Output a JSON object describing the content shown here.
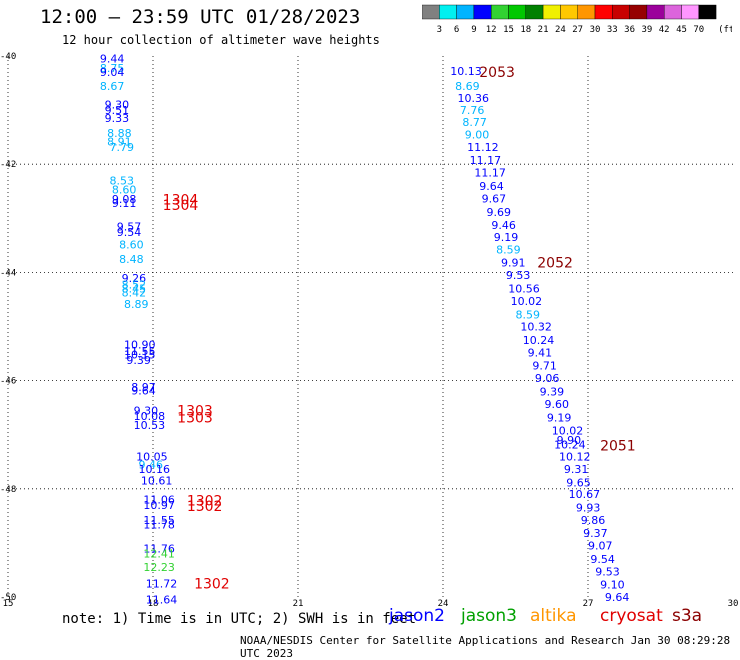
{
  "header": {
    "title": "12:00 – 23:59 UTC 01/28/2023",
    "subtitle": "12 hour collection of altimeter wave heights"
  },
  "color_scale": {
    "levels": [
      "3",
      "6",
      "9",
      "12",
      "15",
      "18",
      "21",
      "24",
      "27",
      "30",
      "33",
      "36",
      "39",
      "42",
      "45",
      "70"
    ],
    "unit": "(ft)",
    "colors": [
      "#808080",
      "#00f0f0",
      "#00b4ff",
      "#0000ff",
      "#32d232",
      "#00c800",
      "#008000",
      "#f0f000",
      "#ffc800",
      "#ff9600",
      "#ff0000",
      "#c80000",
      "#960000",
      "#9b009b",
      "#dc64dc",
      "#ff96ff",
      "#000000"
    ]
  },
  "footer": {
    "note": "note: 1) Time is in UTC; 2) SWH is in feet",
    "credit": "NOAA/NESDIS Center for Satellite Applications and Research  Jan 30 08:29:28 UTC 2023",
    "satellites": [
      {
        "name": "jason2",
        "color": "#0000ff"
      },
      {
        "name": "jason3",
        "color": "#00a000"
      },
      {
        "name": "altika",
        "color": "#ff9600"
      },
      {
        "name": "cryosat",
        "color": "#e00000"
      },
      {
        "name": "s3a",
        "color": "#8b0000"
      }
    ]
  },
  "chart_data": {
    "type": "scatter",
    "title": "12:00 – 23:59 UTC 01/28/2023",
    "subtitle": "12 hour collection of altimeter wave heights",
    "xlim": [
      15,
      30
    ],
    "ylim": [
      -50,
      -40
    ],
    "x_ticks": [
      "15",
      "18",
      "21",
      "24",
      "27",
      "30"
    ],
    "y_ticks": [
      "-40",
      "-42",
      "-44",
      "-46",
      "-48",
      "-50"
    ],
    "grid": true,
    "points": [
      {
        "x": 16.9,
        "y": -40.05,
        "v": "9.44",
        "c": "#0000ff"
      },
      {
        "x": 16.9,
        "y": -40.22,
        "v": "8.75",
        "c": "#00b4ff"
      },
      {
        "x": 16.9,
        "y": -40.3,
        "v": "9.04",
        "c": "#0000ff"
      },
      {
        "x": 16.9,
        "y": -40.55,
        "v": "8.67",
        "c": "#00b4ff"
      },
      {
        "x": 17.0,
        "y": -40.9,
        "v": "9.30",
        "c": "#0000ff"
      },
      {
        "x": 17.0,
        "y": -41.0,
        "v": "9.51",
        "c": "#0000ff"
      },
      {
        "x": 17.0,
        "y": -41.15,
        "v": "9.33",
        "c": "#0000ff"
      },
      {
        "x": 17.05,
        "y": -41.42,
        "v": "8.88",
        "c": "#00b4ff"
      },
      {
        "x": 17.05,
        "y": -41.58,
        "v": "8.91",
        "c": "#00b4ff"
      },
      {
        "x": 17.1,
        "y": -41.68,
        "v": "7.79",
        "c": "#00b4ff"
      },
      {
        "x": 17.1,
        "y": -42.3,
        "v": "8.53",
        "c": "#00b4ff"
      },
      {
        "x": 17.15,
        "y": -42.47,
        "v": "8.60",
        "c": "#00b4ff"
      },
      {
        "x": 17.15,
        "y": -42.64,
        "v": "9.08",
        "c": "#0000ff"
      },
      {
        "x": 17.15,
        "y": -42.72,
        "v": "9.11",
        "c": "#0000ff"
      },
      {
        "x": 17.25,
        "y": -43.15,
        "v": "9.57",
        "c": "#0000ff"
      },
      {
        "x": 17.25,
        "y": -43.25,
        "v": "9.54",
        "c": "#0000ff"
      },
      {
        "x": 17.3,
        "y": -43.48,
        "v": "8.60",
        "c": "#00b4ff"
      },
      {
        "x": 17.3,
        "y": -43.75,
        "v": "8.48",
        "c": "#00b4ff"
      },
      {
        "x": 17.35,
        "y": -44.1,
        "v": "9.26",
        "c": "#0000ff"
      },
      {
        "x": 17.35,
        "y": -44.22,
        "v": "8.52",
        "c": "#00b4ff"
      },
      {
        "x": 17.35,
        "y": -44.3,
        "v": "8.45",
        "c": "#00b4ff"
      },
      {
        "x": 17.35,
        "y": -44.37,
        "v": "8.42",
        "c": "#00b4ff"
      },
      {
        "x": 17.4,
        "y": -44.58,
        "v": "8.89",
        "c": "#00b4ff"
      },
      {
        "x": 17.4,
        "y": -45.33,
        "v": "10.90",
        "c": "#0000ff"
      },
      {
        "x": 17.4,
        "y": -45.45,
        "v": "11.55",
        "c": "#0000ff"
      },
      {
        "x": 17.4,
        "y": -45.52,
        "v": "10.15",
        "c": "#0000ff"
      },
      {
        "x": 17.45,
        "y": -45.62,
        "v": "9.39",
        "c": "#0000ff"
      },
      {
        "x": 17.55,
        "y": -46.12,
        "v": "8.97",
        "c": "#0000ff"
      },
      {
        "x": 17.55,
        "y": -46.18,
        "v": "9.64",
        "c": "#0000ff"
      },
      {
        "x": 17.6,
        "y": -46.55,
        "v": "9.30",
        "c": "#0000ff"
      },
      {
        "x": 17.6,
        "y": -46.65,
        "v": "10.08",
        "c": "#0000ff"
      },
      {
        "x": 17.6,
        "y": -46.82,
        "v": "10.53",
        "c": "#0000ff"
      },
      {
        "x": 17.65,
        "y": -47.4,
        "v": "10.05",
        "c": "#0000ff"
      },
      {
        "x": 17.7,
        "y": -47.55,
        "v": "9.46",
        "c": "#00b4ff"
      },
      {
        "x": 17.7,
        "y": -47.63,
        "v": "10.16",
        "c": "#0000ff"
      },
      {
        "x": 17.75,
        "y": -47.85,
        "v": "10.61",
        "c": "#0000ff"
      },
      {
        "x": 17.8,
        "y": -48.2,
        "v": "11.06",
        "c": "#0000ff"
      },
      {
        "x": 17.8,
        "y": -48.3,
        "v": "10.97",
        "c": "#0000ff"
      },
      {
        "x": 17.8,
        "y": -48.58,
        "v": "11.55",
        "c": "#0000ff"
      },
      {
        "x": 17.8,
        "y": -48.66,
        "v": "11.78",
        "c": "#0000ff"
      },
      {
        "x": 17.8,
        "y": -49.1,
        "v": "11.76",
        "c": "#0000ff"
      },
      {
        "x": 17.8,
        "y": -49.2,
        "v": "12.41",
        "c": "#32d232"
      },
      {
        "x": 17.8,
        "y": -49.45,
        "v": "12.23",
        "c": "#32d232"
      },
      {
        "x": 17.85,
        "y": -49.75,
        "v": "11.72",
        "c": "#0000ff"
      },
      {
        "x": 17.85,
        "y": -50.05,
        "v": "11.64",
        "c": "#0000ff"
      },
      {
        "x": 24.15,
        "y": -40.28,
        "v": "10.13",
        "c": "#0000ff"
      },
      {
        "x": 24.25,
        "y": -40.55,
        "v": "8.69",
        "c": "#00b4ff"
      },
      {
        "x": 24.3,
        "y": -40.78,
        "v": "10.36",
        "c": "#0000ff"
      },
      {
        "x": 24.35,
        "y": -41.0,
        "v": "7.76",
        "c": "#00b4ff"
      },
      {
        "x": 24.4,
        "y": -41.22,
        "v": "8.77",
        "c": "#00b4ff"
      },
      {
        "x": 24.45,
        "y": -41.45,
        "v": "9.00",
        "c": "#00b4ff"
      },
      {
        "x": 24.5,
        "y": -41.68,
        "v": "11.12",
        "c": "#0000ff"
      },
      {
        "x": 24.55,
        "y": -41.92,
        "v": "11.17",
        "c": "#0000ff"
      },
      {
        "x": 24.65,
        "y": -42.15,
        "v": "11.17",
        "c": "#0000ff"
      },
      {
        "x": 24.75,
        "y": -42.4,
        "v": "9.64",
        "c": "#0000ff"
      },
      {
        "x": 24.8,
        "y": -42.63,
        "v": "9.67",
        "c": "#0000ff"
      },
      {
        "x": 24.9,
        "y": -42.88,
        "v": "9.69",
        "c": "#0000ff"
      },
      {
        "x": 25.0,
        "y": -43.12,
        "v": "9.46",
        "c": "#0000ff"
      },
      {
        "x": 25.05,
        "y": -43.35,
        "v": "9.19",
        "c": "#0000ff"
      },
      {
        "x": 25.1,
        "y": -43.58,
        "v": "8.59",
        "c": "#00b4ff"
      },
      {
        "x": 25.2,
        "y": -43.82,
        "v": "9.91",
        "c": "#0000ff"
      },
      {
        "x": 25.3,
        "y": -44.05,
        "v": "9.53",
        "c": "#0000ff"
      },
      {
        "x": 25.35,
        "y": -44.3,
        "v": "10.56",
        "c": "#0000ff"
      },
      {
        "x": 25.4,
        "y": -44.53,
        "v": "10.02",
        "c": "#0000ff"
      },
      {
        "x": 25.5,
        "y": -44.78,
        "v": "8.59",
        "c": "#00b4ff"
      },
      {
        "x": 25.6,
        "y": -45.0,
        "v": "10.32",
        "c": "#0000ff"
      },
      {
        "x": 25.65,
        "y": -45.25,
        "v": "10.24",
        "c": "#0000ff"
      },
      {
        "x": 25.75,
        "y": -45.48,
        "v": "9.41",
        "c": "#0000ff"
      },
      {
        "x": 25.85,
        "y": -45.72,
        "v": "9.71",
        "c": "#0000ff"
      },
      {
        "x": 25.9,
        "y": -45.95,
        "v": "9.06",
        "c": "#0000ff"
      },
      {
        "x": 26.0,
        "y": -46.2,
        "v": "9.39",
        "c": "#0000ff"
      },
      {
        "x": 26.1,
        "y": -46.43,
        "v": "9.60",
        "c": "#0000ff"
      },
      {
        "x": 26.15,
        "y": -46.68,
        "v": "9.19",
        "c": "#0000ff"
      },
      {
        "x": 26.25,
        "y": -46.92,
        "v": "10.02",
        "c": "#0000ff"
      },
      {
        "x": 26.35,
        "y": -47.1,
        "v": "9.90",
        "c": "#0000ff"
      },
      {
        "x": 26.3,
        "y": -47.18,
        "v": "10.24",
        "c": "#0000ff"
      },
      {
        "x": 26.4,
        "y": -47.4,
        "v": "10.12",
        "c": "#0000ff"
      },
      {
        "x": 26.5,
        "y": -47.63,
        "v": "9.31",
        "c": "#0000ff"
      },
      {
        "x": 26.55,
        "y": -47.88,
        "v": "9.65",
        "c": "#0000ff"
      },
      {
        "x": 26.6,
        "y": -48.1,
        "v": "10.67",
        "c": "#0000ff"
      },
      {
        "x": 26.75,
        "y": -48.35,
        "v": "9.93",
        "c": "#0000ff"
      },
      {
        "x": 26.85,
        "y": -48.58,
        "v": "9.86",
        "c": "#0000ff"
      },
      {
        "x": 26.9,
        "y": -48.82,
        "v": "9.37",
        "c": "#0000ff"
      },
      {
        "x": 27.0,
        "y": -49.05,
        "v": "9.07",
        "c": "#0000ff"
      },
      {
        "x": 27.05,
        "y": -49.3,
        "v": "9.54",
        "c": "#0000ff"
      },
      {
        "x": 27.15,
        "y": -49.53,
        "v": "9.53",
        "c": "#0000ff"
      },
      {
        "x": 27.25,
        "y": -49.77,
        "v": "9.10",
        "c": "#0000ff"
      },
      {
        "x": 27.35,
        "y": -50.0,
        "v": "9.64",
        "c": "#0000ff"
      }
    ],
    "pass_labels": [
      {
        "x": 24.75,
        "y": -40.3,
        "v": "2053",
        "c": "#8b0000"
      },
      {
        "x": 25.95,
        "y": -43.82,
        "v": "2052",
        "c": "#8b0000"
      },
      {
        "x": 27.25,
        "y": -47.2,
        "v": "2051",
        "c": "#8b0000"
      },
      {
        "x": 18.2,
        "y": -42.65,
        "v": "1304",
        "c": "#e00000"
      },
      {
        "x": 18.2,
        "y": -42.75,
        "v": "1304",
        "c": "#e00000"
      },
      {
        "x": 18.5,
        "y": -46.55,
        "v": "1303",
        "c": "#e00000"
      },
      {
        "x": 18.5,
        "y": -46.68,
        "v": "1303",
        "c": "#e00000"
      },
      {
        "x": 18.7,
        "y": -48.22,
        "v": "1302",
        "c": "#e00000"
      },
      {
        "x": 18.7,
        "y": -48.32,
        "v": "1302",
        "c": "#e00000"
      },
      {
        "x": 18.85,
        "y": -49.75,
        "v": "1302",
        "c": "#e00000"
      }
    ]
  }
}
